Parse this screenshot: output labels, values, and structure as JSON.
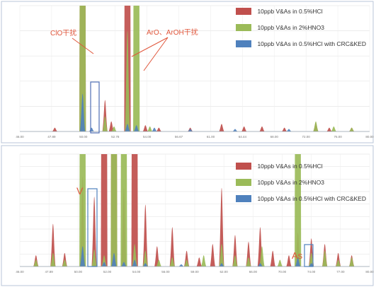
{
  "chart_data": [
    {
      "type": "area",
      "title": "",
      "xlabel": "",
      "ylabel": "",
      "xlim": [
        44,
        83
      ],
      "ylim": [
        0,
        100
      ],
      "x_ticks": [
        "46.00",
        "47.89",
        "50.00",
        "52.78",
        "54.00",
        "56.67",
        "61.00",
        "64.44",
        "68.00",
        "72.00",
        "76.00",
        "80.00"
      ],
      "y_ticks": [
        "",
        "",
        "",
        "",
        "",
        ""
      ],
      "legend_position": "top-right",
      "grid": true,
      "series": [
        {
          "name": "10ppb V&As in 0.5%HCl",
          "color": "#c0504d",
          "peaks": [
            [
              47.9,
              3
            ],
            [
              51,
              100
            ],
            [
              53.5,
              25
            ],
            [
              54.2,
              8
            ],
            [
              56,
              100
            ],
            [
              58,
              5
            ],
            [
              59.5,
              3
            ],
            [
              63,
              3
            ],
            [
              66.5,
              6
            ],
            [
              69,
              4
            ],
            [
              71,
              4
            ],
            [
              73.5,
              3
            ],
            [
              77,
              7
            ],
            [
              78.5,
              3
            ],
            [
              81,
              3
            ]
          ]
        },
        {
          "name": "10ppb V&As in 2%HNO3",
          "color": "#9bbb59",
          "peaks": [
            [
              51,
              100
            ],
            [
              53.5,
              12
            ],
            [
              54.5,
              4
            ],
            [
              56,
              80
            ],
            [
              57,
              100
            ],
            [
              58.5,
              4
            ],
            [
              77,
              8
            ],
            [
              79,
              4
            ],
            [
              81,
              3
            ]
          ]
        },
        {
          "name": "10ppb V&As in 0.5%HCl with CRC&KED",
          "color": "#4f81bd",
          "peaks": [
            [
              51,
              30
            ],
            [
              52,
              3
            ],
            [
              56,
              6
            ],
            [
              57,
              5
            ],
            [
              59,
              3
            ],
            [
              63,
              2
            ],
            [
              68,
              2
            ],
            [
              74,
              2
            ]
          ]
        }
      ],
      "annotations": [
        {
          "text": "ClO干扰"
        },
        {
          "text": "ArO、ArOH干扰"
        }
      ]
    },
    {
      "type": "area",
      "title": "",
      "xlabel": "",
      "ylabel": "",
      "xlim": [
        44,
        83
      ],
      "ylim": [
        0,
        100
      ],
      "x_ticks": [
        "46.00",
        "47.89",
        "50.00",
        "52.00",
        "54.00",
        "56.00",
        "59.00",
        "62.00",
        "66.00",
        "70.00",
        "74.00",
        "77.00",
        "80.00"
      ],
      "y_ticks": [
        "",
        "",
        "",
        "",
        "",
        "",
        "",
        "",
        "",
        ""
      ],
      "legend_position": "top-right",
      "grid": true,
      "series": [
        {
          "name": "10ppb V&As in 0.5%HCl",
          "color": "#c0504d",
          "peaks": [
            [
              45.8,
              10
            ],
            [
              47.7,
              38
            ],
            [
              49,
              12
            ],
            [
              51,
              80
            ],
            [
              52.3,
              62
            ],
            [
              53.4,
              100
            ],
            [
              54.5,
              100
            ],
            [
              55.6,
              70
            ],
            [
              56.8,
              100
            ],
            [
              58,
              55
            ],
            [
              59.3,
              18
            ],
            [
              61,
              35
            ],
            [
              62.6,
              14
            ],
            [
              64,
              8
            ],
            [
              65.5,
              20
            ],
            [
              66.5,
              70
            ],
            [
              68,
              28
            ],
            [
              69.5,
              22
            ],
            [
              70.8,
              35
            ],
            [
              72.2,
              14
            ],
            [
              74,
              10
            ],
            [
              75,
              30
            ],
            [
              76.5,
              25
            ],
            [
              78,
              20
            ],
            [
              79.5,
              12
            ],
            [
              81,
              10
            ]
          ]
        },
        {
          "name": "10ppb V&As in 2%HNO3",
          "color": "#9bbb59",
          "peaks": [
            [
              45.8,
              6
            ],
            [
              47.7,
              12
            ],
            [
              49,
              6
            ],
            [
              51,
              100
            ],
            [
              52.3,
              15
            ],
            [
              53.4,
              10
            ],
            [
              54.5,
              100
            ],
            [
              55.6,
              100
            ],
            [
              56.8,
              20
            ],
            [
              58,
              14
            ],
            [
              59.5,
              6
            ],
            [
              61,
              8
            ],
            [
              62.6,
              6
            ],
            [
              64.5,
              10
            ],
            [
              66.5,
              20
            ],
            [
              68,
              10
            ],
            [
              69.5,
              8
            ],
            [
              71,
              18
            ],
            [
              73,
              6
            ],
            [
              75,
              100
            ],
            [
              76.5,
              12
            ],
            [
              78,
              14
            ],
            [
              79.5,
              6
            ],
            [
              81,
              8
            ]
          ]
        },
        {
          "name": "10ppb V&As in 0.5%HCl with CRC&KED",
          "color": "#4f81bd",
          "peaks": [
            [
              51,
              18
            ],
            [
              53.4,
              4
            ],
            [
              54.5,
              12
            ],
            [
              55.6,
              4
            ],
            [
              56.8,
              6
            ],
            [
              58,
              3
            ],
            [
              62,
              2
            ],
            [
              66.5,
              3
            ],
            [
              70.8,
              3
            ],
            [
              75,
              8
            ],
            [
              76.5,
              3
            ]
          ]
        }
      ],
      "annotations": [
        {
          "text": "V"
        },
        {
          "text": "As"
        }
      ]
    }
  ]
}
